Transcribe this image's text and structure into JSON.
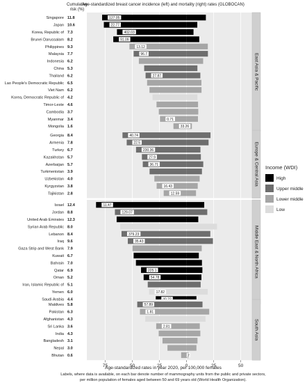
{
  "chart_data": {
    "type": "bar",
    "header": {
      "cumulative_risk_label_line1": "Cumulative",
      "cumulative_risk_label_line2": "risk (%)",
      "title": "Age-standardized breast cancer incidence (left) and mortality (right) rates (GLOBOCAN)"
    },
    "xlabel": "Age-standardized rates in year 2020, per 100,000 females",
    "x_ticks": [
      "75",
      "50",
      "25",
      "0",
      "25",
      "50"
    ],
    "x_tick_values": [
      -75,
      -50,
      -25,
      0,
      25,
      50
    ],
    "xlim": [
      -92,
      58
    ],
    "caption": [
      "Labels, where data is available, on each bar denote number of mammography units from the public and private sectors,",
      "per million population of females aged between 50 and 69 years old (World Health Organization)."
    ],
    "legend": {
      "title": "Income (WDI)",
      "placement": "right",
      "items": [
        {
          "label": "High",
          "color": "#000000"
        },
        {
          "label": "Upper middle",
          "color": "#6e6e6e"
        },
        {
          "label": "Lower middle",
          "color": "#a6a6a6"
        },
        {
          "label": "Low",
          "color": "#dcdcdc"
        }
      ]
    },
    "colors": {
      "High": "#000000",
      "Upper middle": "#6e6e6e",
      "Lower middle": "#a6a6a6",
      "Low": "#dcdcdc"
    },
    "panels": [
      {
        "region": "East Asia & Pacific",
        "countries": [
          {
            "name": "Singapore",
            "risk": "11.8",
            "income": "High",
            "incidence": 77.9,
            "mortality": 17.8,
            "labels": [
              "127.05"
            ]
          },
          {
            "name": "Japan",
            "risk": "10.6",
            "income": "High",
            "incidence": 76.3,
            "mortality": 9.9,
            "labels": [
              "22.77"
            ]
          },
          {
            "name": "Korea, Republic of",
            "risk": "7.3",
            "income": "High",
            "incidence": 64.2,
            "mortality": 6.4,
            "labels": [
              "402.03"
            ]
          },
          {
            "name": "Brunei Darussalam",
            "risk": "8.2",
            "income": "High",
            "incidence": 67.6,
            "mortality": 11.7,
            "labels": [
              "91.09"
            ]
          },
          {
            "name": "Philippines",
            "risk": "9.3",
            "income": "Lower middle",
            "incidence": 52.7,
            "mortality": 19.6,
            "labels": [
              "13.12"
            ]
          },
          {
            "name": "Malaysia",
            "risk": "7.7",
            "income": "Upper middle",
            "incidence": 48.8,
            "mortality": 19.7,
            "labels": [
              "96.7"
            ]
          },
          {
            "name": "Indonesia",
            "risk": "6.2",
            "income": "Lower middle",
            "incidence": 44.0,
            "mortality": 15.3,
            "labels": []
          },
          {
            "name": "China",
            "risk": "5.3",
            "income": "Upper middle",
            "incidence": 39.1,
            "mortality": 10.0,
            "labels": []
          },
          {
            "name": "Thailand",
            "risk": "6.2",
            "income": "Upper middle",
            "incidence": 37.8,
            "mortality": 12.7,
            "labels": [
              "27.87"
            ]
          },
          {
            "name": "Lao People's Democratic Republic",
            "risk": "6.5",
            "income": "Lower middle",
            "incidence": 36.4,
            "mortality": 13.7,
            "labels": []
          },
          {
            "name": "Viet Nam",
            "risk": "6.2",
            "income": "Lower middle",
            "incidence": 34.2,
            "mortality": 13.8,
            "labels": []
          },
          {
            "name": "Korea, Democratic Republic of",
            "risk": "4.2",
            "income": "Low",
            "incidence": 31.4,
            "mortality": 10.0,
            "labels": []
          },
          {
            "name": "Timor-Leste",
            "risk": "4.6",
            "income": "Lower middle",
            "incidence": 27.7,
            "mortality": 10.6,
            "labels": []
          },
          {
            "name": "Cambodia",
            "risk": "3.7",
            "income": "Lower middle",
            "incidence": 25.6,
            "mortality": 10.8,
            "labels": []
          },
          {
            "name": "Myanmar",
            "risk": "3.4",
            "income": "Lower middle",
            "incidence": 24.5,
            "mortality": 10.5,
            "labels": [
              "0.71"
            ]
          },
          {
            "name": "Mongolia",
            "risk": "1.6",
            "income": "Lower middle",
            "incidence": 12.1,
            "mortality": 4.9,
            "labels": [
              "33.26"
            ]
          }
        ]
      },
      {
        "region": "Europe & Central Asia",
        "countries": [
          {
            "name": "Georgia",
            "risk": "8.4",
            "income": "Upper middle",
            "incidence": 59.1,
            "mortality": 22.1,
            "labels": [
              "40.74"
            ]
          },
          {
            "name": "Armenia",
            "risk": "7.8",
            "income": "Upper middle",
            "incidence": 55.2,
            "mortality": 20.3,
            "labels": [
              "22.5"
            ]
          },
          {
            "name": "Turkey",
            "risk": "6.7",
            "income": "Upper middle",
            "incidence": 46.6,
            "mortality": 12.8,
            "labels": [
              "230.36"
            ]
          },
          {
            "name": "Kazakhstan",
            "risk": "5.7",
            "income": "Upper middle",
            "incidence": 41.2,
            "mortality": 13.2,
            "labels": [
              "27.9"
            ]
          },
          {
            "name": "Azerbaijan",
            "risk": "5.7",
            "income": "Upper middle",
            "incidence": 40.4,
            "mortality": 15.4,
            "labels": [
              "36.71"
            ]
          },
          {
            "name": "Turkmenistan",
            "risk": "3.9",
            "income": "Upper middle",
            "incidence": 34.1,
            "mortality": 14.2,
            "labels": []
          },
          {
            "name": "Uzbekistan",
            "risk": "4.0",
            "income": "Lower middle",
            "incidence": 29.7,
            "mortality": 12.1,
            "labels": []
          },
          {
            "name": "Kyrgyzstan",
            "risk": "3.8",
            "income": "Lower middle",
            "incidence": 27.6,
            "mortality": 10.3,
            "labels": [
              "16.43"
            ]
          },
          {
            "name": "Tajikistan",
            "risk": "2.8",
            "income": "Lower middle",
            "incidence": 21.1,
            "mortality": 8.7,
            "labels": [
              "12.59"
            ]
          }
        ]
      },
      {
        "region": "Middle East & North Africa",
        "countries": [
          {
            "name": "Israel",
            "risk": "12.4",
            "income": "High",
            "incidence": 83.5,
            "mortality": 16.3,
            "labels": [
              "11.47"
            ]
          },
          {
            "name": "Jordan",
            "risk": "8.8",
            "income": "Upper middle",
            "incidence": 66.1,
            "mortality": 19.1,
            "labels": [
              "129.07"
            ]
          },
          {
            "name": "United Arab Emirates",
            "risk": "12.3",
            "income": "High",
            "incidence": 64.5,
            "mortality": 10.8,
            "labels": []
          },
          {
            "name": "Syrian Arab Republic",
            "risk": "8.0",
            "income": "Low",
            "incidence": 61.2,
            "mortality": 28.1,
            "labels": []
          },
          {
            "name": "Lebanon",
            "risk": "8.4",
            "income": "Upper middle",
            "incidence": 60.0,
            "mortality": 21.9,
            "labels": [
              "379.23"
            ]
          },
          {
            "name": "Iraq",
            "risk": "9.6",
            "income": "Upper middle",
            "incidence": 54.2,
            "mortality": 24.3,
            "labels": [
              "35.43"
            ]
          },
          {
            "name": "Gaza Strip and West Bank",
            "risk": "7.9",
            "income": "Lower middle",
            "incidence": 49.9,
            "mortality": 14.0,
            "labels": []
          },
          {
            "name": "Kuwait",
            "risk": "6.7",
            "income": "High",
            "incidence": 48.8,
            "mortality": 11.3,
            "labels": []
          },
          {
            "name": "Bahrain",
            "risk": "7.0",
            "income": "High",
            "incidence": 46.7,
            "mortality": 14.2,
            "labels": []
          },
          {
            "name": "Qatar",
            "risk": "6.9",
            "income": "High",
            "incidence": 42.0,
            "mortality": 14.6,
            "labels": [
              "225.1"
            ]
          },
          {
            "name": "Oman",
            "risk": "5.2",
            "income": "High",
            "incidence": 39.6,
            "mortality": 13.7,
            "labels": [
              "54.78"
            ]
          },
          {
            "name": "Iran, Islamic Republic of",
            "risk": "5.1",
            "income": "Upper middle",
            "incidence": 35.8,
            "mortality": 13.0,
            "labels": []
          },
          {
            "name": "Yemen",
            "risk": "6.0",
            "income": "Low",
            "incidence": 34.6,
            "mortality": 19.5,
            "labels": [
              "17.82"
            ]
          },
          {
            "name": "Saudi Arabia",
            "risk": "4.4",
            "income": "High",
            "incidence": 28.4,
            "mortality": 9.1,
            "labels": [
              "40.22"
            ]
          }
        ]
      },
      {
        "region": "South Asia",
        "countries": [
          {
            "name": "Maldives",
            "risk": "5.8",
            "income": "Upper middle",
            "incidence": 45.5,
            "mortality": 14.7,
            "labels": [
              "57.89"
            ]
          },
          {
            "name": "Pakistan",
            "risk": "6.3",
            "income": "Lower middle",
            "incidence": 43.0,
            "mortality": 20.9,
            "labels": [
              "1.81"
            ]
          },
          {
            "name": "Afghanistan",
            "risk": "4.3",
            "income": "Low",
            "incidence": 38.1,
            "mortality": 17.5,
            "labels": []
          },
          {
            "name": "Sri Lanka",
            "risk": "3.6",
            "income": "Lower middle",
            "incidence": 28.0,
            "mortality": 12.2,
            "labels": [
              "2.81"
            ]
          },
          {
            "name": "India",
            "risk": "4.3",
            "income": "Lower middle",
            "incidence": 25.7,
            "mortality": 12.7,
            "labels": []
          },
          {
            "name": "Bangladesh",
            "risk": "3.1",
            "income": "Lower middle",
            "incidence": 22.2,
            "mortality": 10.1,
            "labels": []
          },
          {
            "name": "Nepal",
            "risk": "3.0",
            "income": "Lower middle",
            "incidence": 17.6,
            "mortality": 9.1,
            "labels": []
          },
          {
            "name": "Bhutan",
            "risk": "0.6",
            "income": "Lower middle",
            "incidence": 5.0,
            "mortality": 2.2,
            "labels": [
              "2"
            ]
          }
        ]
      }
    ]
  }
}
